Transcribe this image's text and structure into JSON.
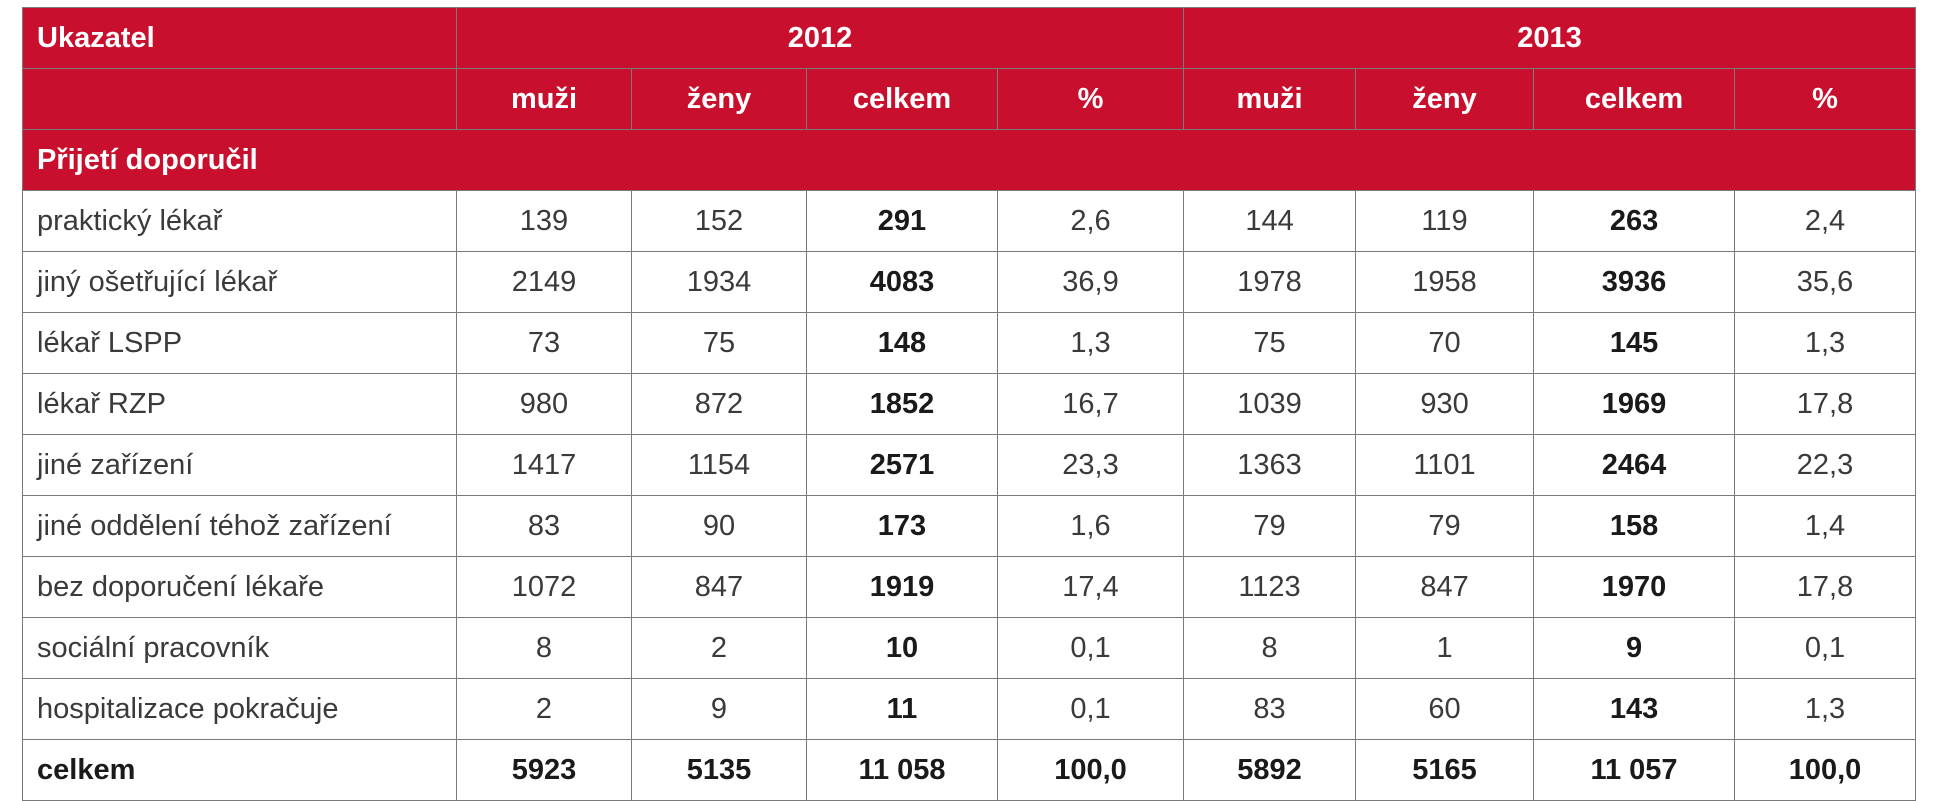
{
  "header": {
    "indicator": "Ukazatel",
    "year1": "2012",
    "year2": "2013",
    "sub": [
      "muži",
      "ženy",
      "celkem",
      "%",
      "muži",
      "ženy",
      "celkem",
      "%"
    ]
  },
  "section_title": "Přijetí doporučil",
  "rows": [
    {
      "label": "praktický lékař",
      "cells": [
        "139",
        "152",
        "291",
        "2,6",
        "144",
        "119",
        "263",
        "2,4"
      ]
    },
    {
      "label": "jiný ošetřující lékař",
      "cells": [
        "2149",
        "1934",
        "4083",
        "36,9",
        "1978",
        "1958",
        "3936",
        "35,6"
      ]
    },
    {
      "label": "lékař LSPP",
      "cells": [
        "73",
        "75",
        "148",
        "1,3",
        "75",
        "70",
        "145",
        "1,3"
      ]
    },
    {
      "label": "lékař RZP",
      "cells": [
        "980",
        "872",
        "1852",
        "16,7",
        "1039",
        "930",
        "1969",
        "17,8"
      ]
    },
    {
      "label": "jiné zařízení",
      "cells": [
        "1417",
        "1154",
        "2571",
        "23,3",
        "1363",
        "1101",
        "2464",
        "22,3"
      ]
    },
    {
      "label": "jiné oddělení téhož zařízení",
      "cells": [
        "83",
        "90",
        "173",
        "1,6",
        "79",
        "79",
        "158",
        "1,4"
      ]
    },
    {
      "label": "bez doporučení lékaře",
      "cells": [
        "1072",
        "847",
        "1919",
        "17,4",
        "1123",
        "847",
        "1970",
        "17,8"
      ]
    },
    {
      "label": "sociální pracovník",
      "cells": [
        "8",
        "2",
        "10",
        "0,1",
        "8",
        "1",
        "9",
        "0,1"
      ]
    },
    {
      "label": "hospitalizace pokračuje",
      "cells": [
        "2",
        "9",
        "11",
        "0,1",
        "83",
        "60",
        "143",
        "1,3"
      ]
    }
  ],
  "total": {
    "label": "celkem",
    "cells": [
      "5923",
      "5135",
      "11 058",
      "100,0",
      "5892",
      "5165",
      "11 057",
      "100,0"
    ]
  },
  "colors": {
    "header_bg": "#c8102e",
    "header_text": "#ffffff",
    "border": "#7a7a7a"
  }
}
